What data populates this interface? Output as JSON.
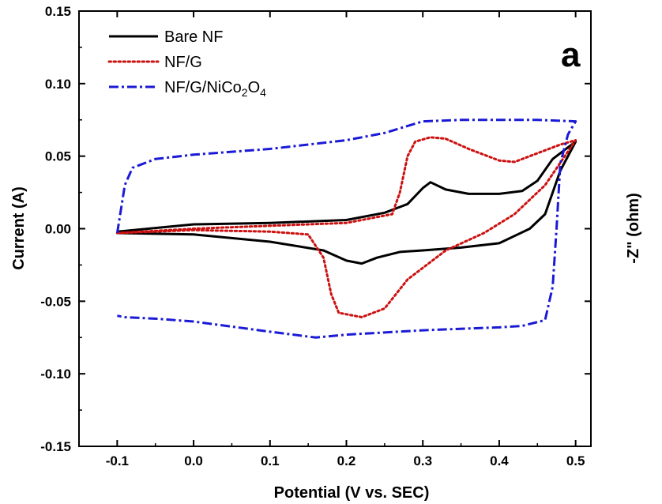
{
  "chart_data": {
    "type": "line",
    "panel_label": "a",
    "xlabel": "Potential (V vs. SEC)",
    "ylabel": "Current (A)",
    "right_label": "-Z\" (ohm)",
    "xlim": [
      -0.15,
      0.52
    ],
    "ylim": [
      -0.15,
      0.15
    ],
    "x_ticks": [
      -0.1,
      0.0,
      0.1,
      0.2,
      0.3,
      0.4,
      0.5
    ],
    "x_tick_labels": [
      "-0.1",
      "0.0",
      "0.1",
      "0.2",
      "0.3",
      "0.4",
      "0.5"
    ],
    "y_ticks": [
      -0.15,
      -0.1,
      -0.05,
      0.0,
      0.05,
      0.1,
      0.15
    ],
    "y_tick_labels": [
      "-0.15",
      "-0.10",
      "-0.05",
      "0.00",
      "0.05",
      "0.10",
      "0.15"
    ],
    "legend_position": "top-left",
    "series": [
      {
        "name": "Bare NF",
        "legend": {
          "main": "Bare NF"
        },
        "color": "#000000",
        "style": "solid",
        "x": [
          -0.1,
          0.0,
          0.1,
          0.2,
          0.25,
          0.28,
          0.3,
          0.31,
          0.33,
          0.36,
          0.4,
          0.43,
          0.45,
          0.47,
          0.49,
          0.5,
          0.48,
          0.46,
          0.44,
          0.42,
          0.4,
          0.35,
          0.3,
          0.27,
          0.24,
          0.22,
          0.2,
          0.17,
          0.1,
          0.0,
          -0.1
        ],
        "y": [
          -0.002,
          0.003,
          0.004,
          0.006,
          0.011,
          0.017,
          0.028,
          0.032,
          0.027,
          0.024,
          0.024,
          0.026,
          0.033,
          0.048,
          0.056,
          0.06,
          0.04,
          0.01,
          0.0,
          -0.005,
          -0.01,
          -0.013,
          -0.015,
          -0.016,
          -0.02,
          -0.024,
          -0.022,
          -0.015,
          -0.009,
          -0.004,
          -0.003
        ]
      },
      {
        "name": "NF/G",
        "legend": {
          "main": "NF/G"
        },
        "color": "#cc1111",
        "style": "dotted",
        "x": [
          -0.1,
          0.0,
          0.1,
          0.2,
          0.26,
          0.27,
          0.28,
          0.29,
          0.31,
          0.33,
          0.36,
          0.4,
          0.42,
          0.45,
          0.48,
          0.5,
          0.46,
          0.42,
          0.38,
          0.33,
          0.28,
          0.25,
          0.22,
          0.19,
          0.18,
          0.17,
          0.15,
          0.1,
          0.0,
          -0.1
        ],
        "y": [
          -0.003,
          0.0,
          0.002,
          0.004,
          0.01,
          0.025,
          0.05,
          0.06,
          0.063,
          0.062,
          0.055,
          0.047,
          0.046,
          0.052,
          0.058,
          0.061,
          0.03,
          0.01,
          -0.003,
          -0.015,
          -0.035,
          -0.055,
          -0.061,
          -0.058,
          -0.045,
          -0.02,
          -0.004,
          -0.002,
          -0.001,
          -0.003
        ]
      },
      {
        "name": "NF/G/NiCo2O4",
        "legend": {
          "main": "NF/G/NiCo",
          "sub1": "2",
          "mid": "O",
          "sub2": "4"
        },
        "color": "#1a1ad6",
        "style": "dashdot",
        "x": [
          -0.1,
          -0.09,
          -0.08,
          -0.05,
          0.0,
          0.1,
          0.2,
          0.25,
          0.3,
          0.35,
          0.4,
          0.45,
          0.5,
          0.49,
          0.48,
          0.475,
          0.47,
          0.46,
          0.43,
          0.4,
          0.3,
          0.2,
          0.16,
          0.1,
          0.0,
          -0.05,
          -0.09,
          -0.1
        ],
        "y": [
          -0.003,
          0.03,
          0.042,
          0.048,
          0.051,
          0.055,
          0.061,
          0.066,
          0.074,
          0.075,
          0.075,
          0.075,
          0.074,
          0.065,
          0.045,
          0.0,
          -0.04,
          -0.063,
          -0.067,
          -0.068,
          -0.07,
          -0.073,
          -0.075,
          -0.071,
          -0.064,
          -0.062,
          -0.061,
          -0.06
        ]
      }
    ]
  }
}
